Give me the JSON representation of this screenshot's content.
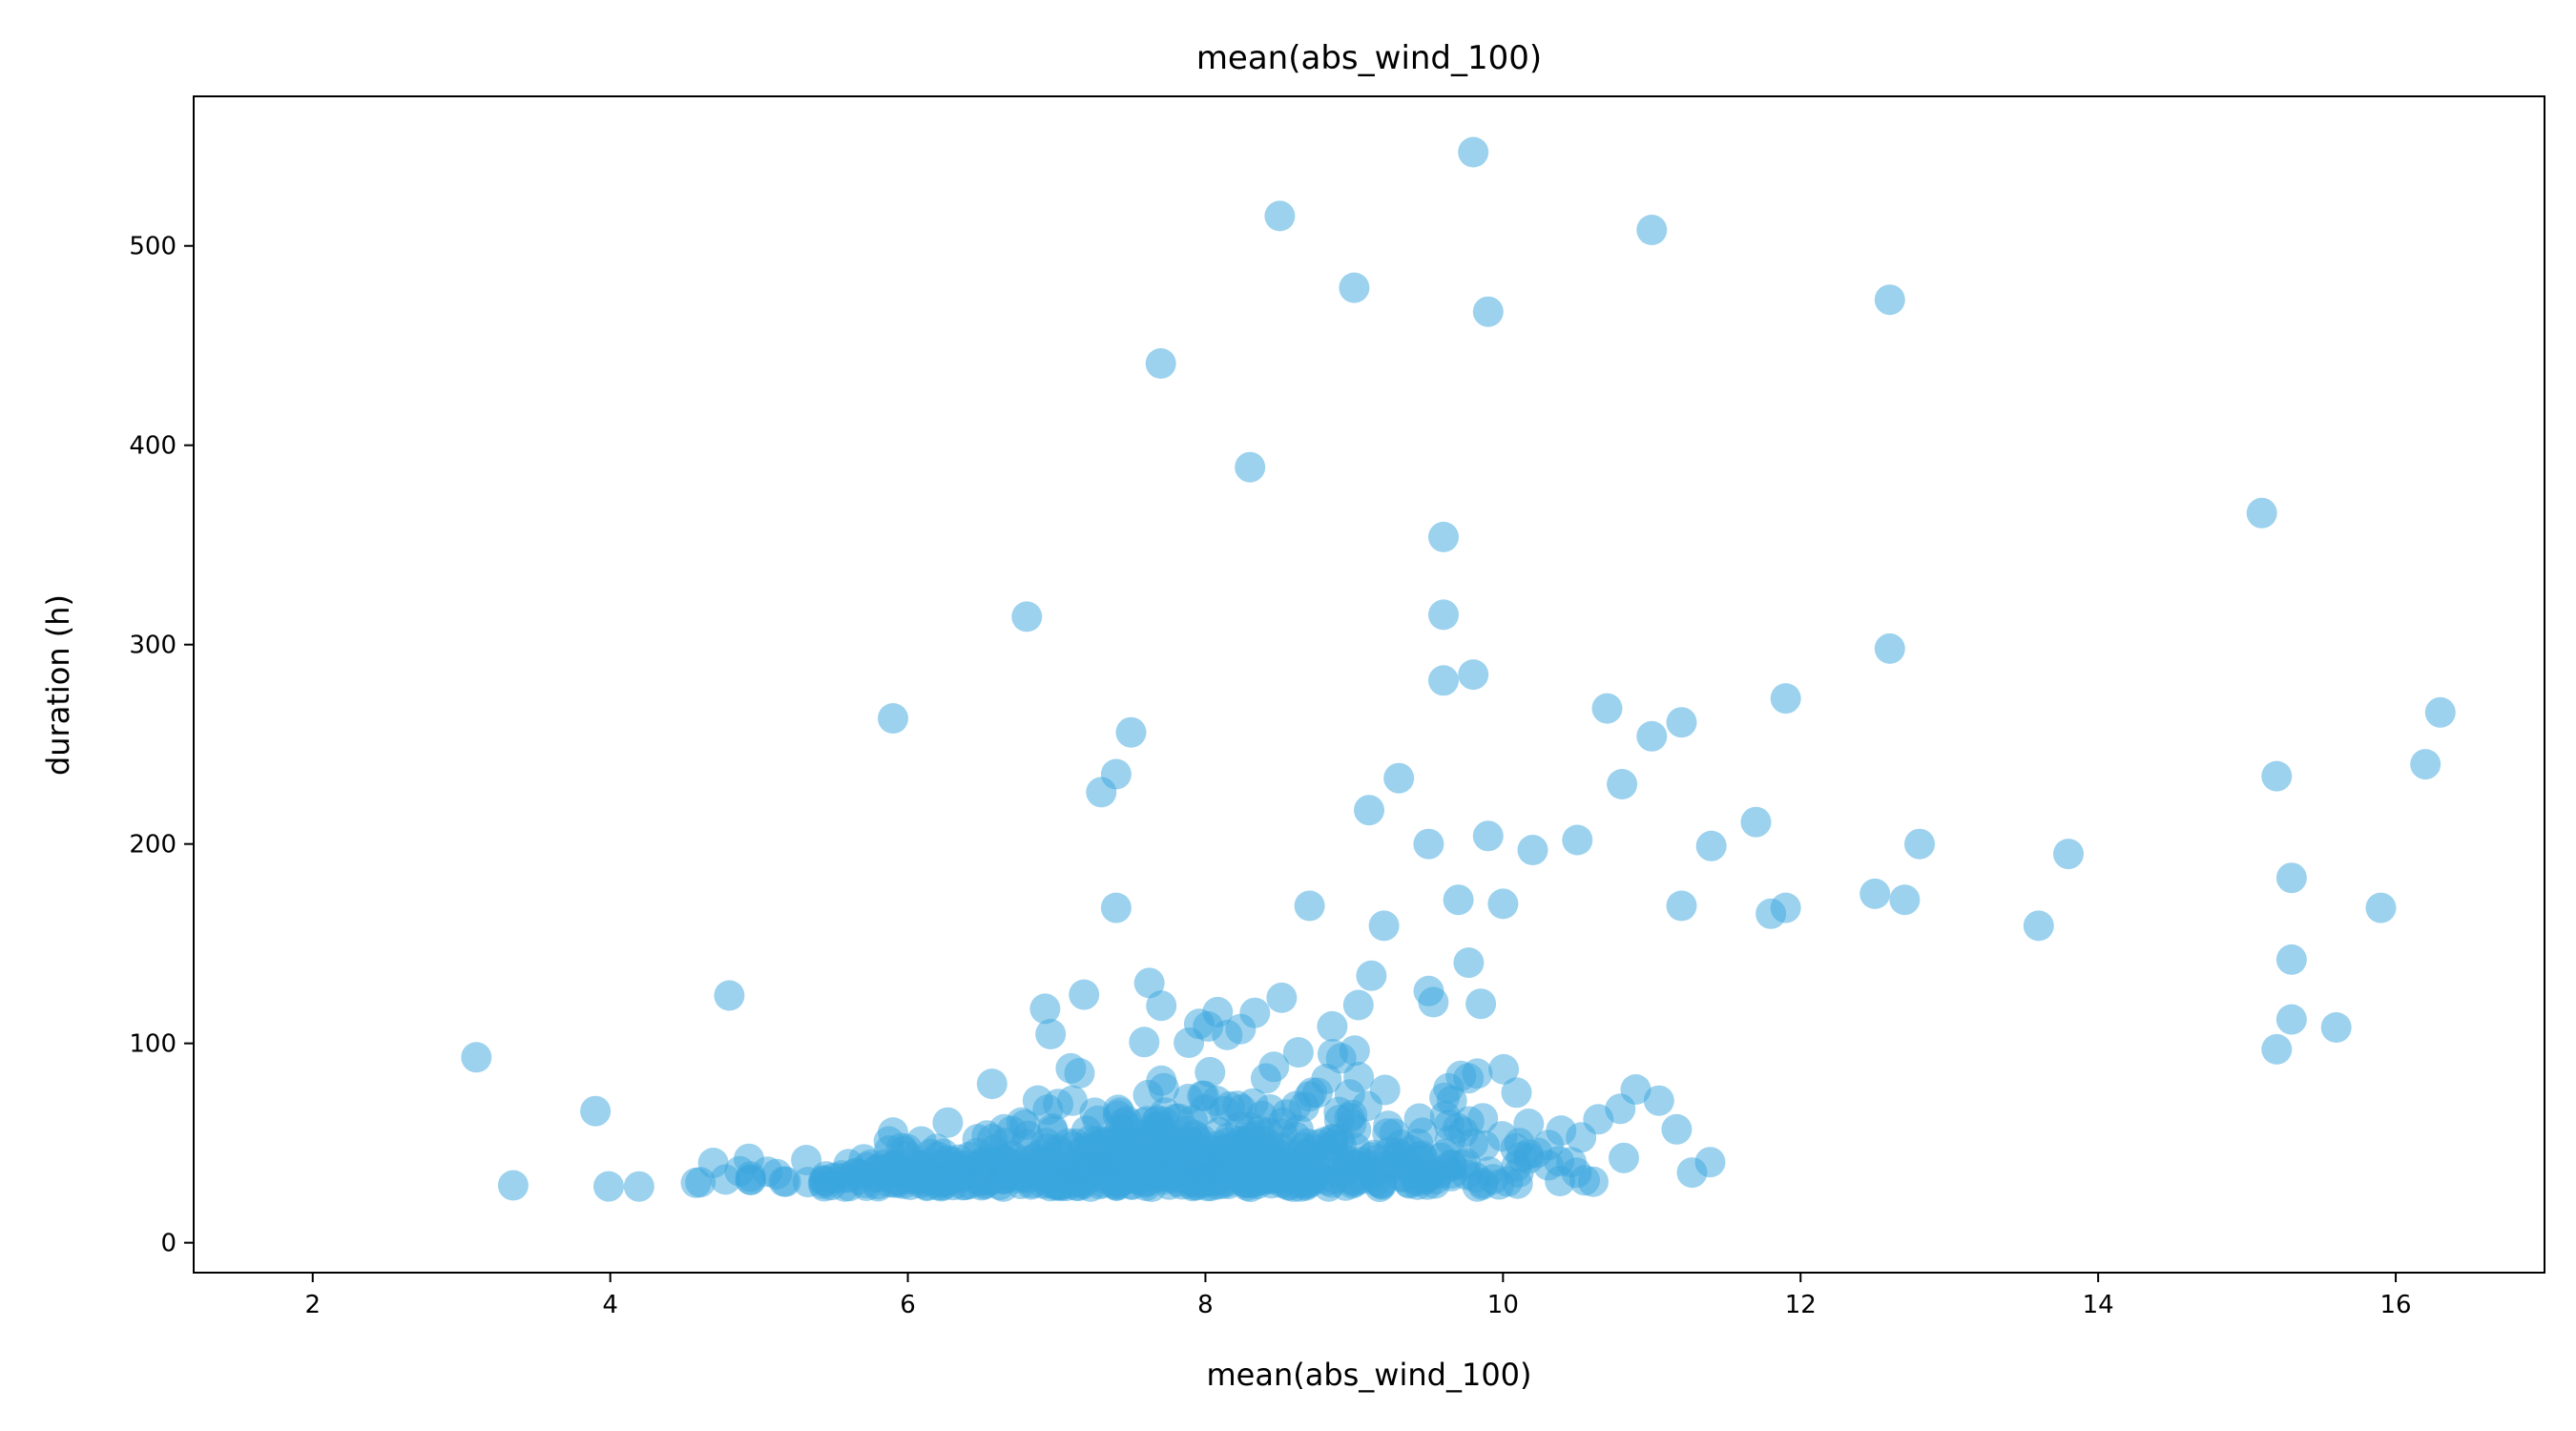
{
  "chart_data": {
    "type": "scatter",
    "title": "mean(abs_wind_100)",
    "xlabel": "mean(abs_wind_100)",
    "ylabel": "duration (h)",
    "xlim": [
      1.2,
      17.0
    ],
    "ylim": [
      -15,
      575
    ],
    "xticks": [
      2,
      4,
      6,
      8,
      10,
      12,
      14,
      16
    ],
    "yticks": [
      0,
      100,
      200,
      300,
      400,
      500
    ],
    "grid": false,
    "point_color": "#3aa6dd",
    "point_opacity": 0.5,
    "outliers": [
      [
        9.8,
        547
      ],
      [
        8.5,
        515
      ],
      [
        11.0,
        508
      ],
      [
        9.0,
        479
      ],
      [
        9.9,
        467
      ],
      [
        12.6,
        473
      ],
      [
        7.7,
        441
      ],
      [
        8.3,
        389
      ],
      [
        15.1,
        366
      ],
      [
        9.6,
        354
      ],
      [
        9.6,
        315
      ],
      [
        6.8,
        314
      ],
      [
        9.8,
        285
      ],
      [
        9.6,
        282
      ],
      [
        12.6,
        298
      ],
      [
        5.9,
        263
      ],
      [
        7.5,
        256
      ],
      [
        10.7,
        268
      ],
      [
        11.2,
        261
      ],
      [
        11.0,
        254
      ],
      [
        11.9,
        273
      ],
      [
        16.3,
        266
      ],
      [
        16.2,
        240
      ],
      [
        15.2,
        234
      ],
      [
        7.4,
        235
      ],
      [
        7.3,
        226
      ],
      [
        9.3,
        233
      ],
      [
        10.8,
        230
      ],
      [
        9.1,
        217
      ],
      [
        11.7,
        211
      ],
      [
        9.5,
        200
      ],
      [
        9.9,
        204
      ],
      [
        10.2,
        197
      ],
      [
        10.5,
        202
      ],
      [
        11.4,
        199
      ],
      [
        12.8,
        200
      ],
      [
        13.8,
        195
      ],
      [
        15.3,
        183
      ],
      [
        15.9,
        168
      ],
      [
        13.6,
        159
      ],
      [
        7.4,
        168
      ],
      [
        8.7,
        169
      ],
      [
        9.2,
        159
      ],
      [
        9.7,
        172
      ],
      [
        10.0,
        170
      ],
      [
        11.2,
        169
      ],
      [
        11.8,
        165
      ],
      [
        11.9,
        168
      ],
      [
        12.5,
        175
      ],
      [
        12.7,
        172
      ],
      [
        4.8,
        124
      ],
      [
        3.1,
        93
      ],
      [
        3.9,
        66
      ],
      [
        15.3,
        142
      ],
      [
        15.3,
        112
      ],
      [
        15.2,
        97
      ],
      [
        15.6,
        108
      ]
    ],
    "cluster": {
      "n_points": 850,
      "x_range": [
        1.9,
        13.8
      ],
      "y_typical_range": [
        12,
        150
      ],
      "y_median_approx": 28
    }
  }
}
